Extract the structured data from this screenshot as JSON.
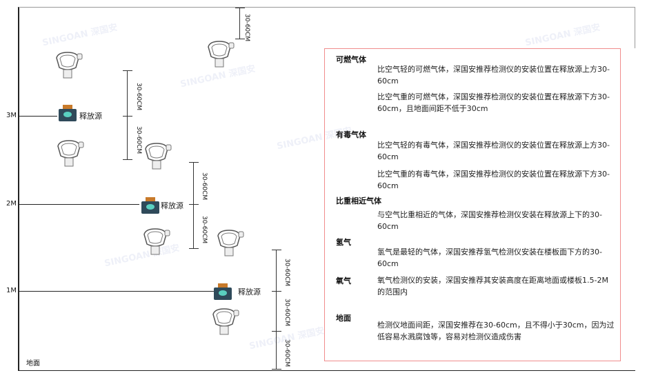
{
  "levels": {
    "l3": "3M",
    "l2": "2M",
    "l1": "1M",
    "ground": "地面"
  },
  "source_label": "释放源",
  "dimension_label": "30-60CM",
  "watermark": "SINGOAN 深国安",
  "legend": {
    "flammable": {
      "title": "可燃气体",
      "p1": "比空气轻的可燃气体，深国安推荐检测仪的安装位置在释放源上方30-60cm",
      "p2": "比空气重的可燃气体，深国安推荐检测仪的安装位置在释放源下方30-60cm，且地面间距不低于30cm"
    },
    "toxic": {
      "title": "有毒气体",
      "p1": "比空气轻的有毒气体，深国安推荐检测仪的安装位置在释放源上方30-60cm",
      "p2": "比空气重的有毒气体，深国安推荐检测仪的安装位置在释放源下方30-60cm"
    },
    "similar": {
      "title": "比重相近气体",
      "p1": "与空气比重相近的气体，深国安推荐检测仪安装在释放源上下的30-60cm"
    },
    "hydrogen": {
      "title": "氢气",
      "p1": "氢气是最轻的气体，深国安推荐氢气检测仪安装在楼板面下方的30-60cm"
    },
    "oxygen": {
      "title": "氧气",
      "p1": "氧气检测仪的安装，深国安推荐其安装高度在距离地面或楼板1.5-2M的范围内"
    },
    "ground": {
      "title": "地面",
      "p1": "检测仪地面间距，深国安推荐在30-60cm，且不得小于30cm，因为过低容易水溅腐蚀等，容易对检测仪造成伤害"
    }
  },
  "colors": {
    "box_border": "#f08c8c",
    "source_body": "#2f4a5a",
    "source_icon": "#5ad0c0",
    "source_cap": "#c87a2a"
  }
}
